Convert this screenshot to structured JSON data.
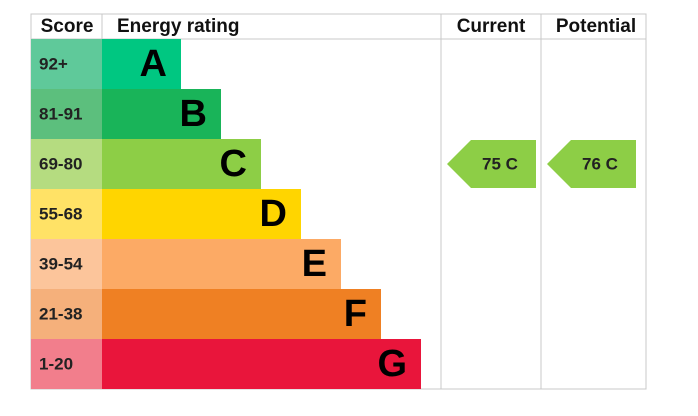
{
  "header": {
    "score": "Score",
    "rating": "Energy rating",
    "current": "Current",
    "potential": "Potential"
  },
  "rows": [
    {
      "score": "92+",
      "rating": "A"
    },
    {
      "score": "81-91",
      "rating": "B"
    },
    {
      "score": "69-80",
      "rating": "C",
      "current": "75 C",
      "potential": "76 C"
    },
    {
      "score": "55-68",
      "rating": "D"
    },
    {
      "score": "39-54",
      "rating": "E"
    },
    {
      "score": "21-38",
      "rating": "F"
    },
    {
      "score": "1-20",
      "rating": "G"
    }
  ]
}
